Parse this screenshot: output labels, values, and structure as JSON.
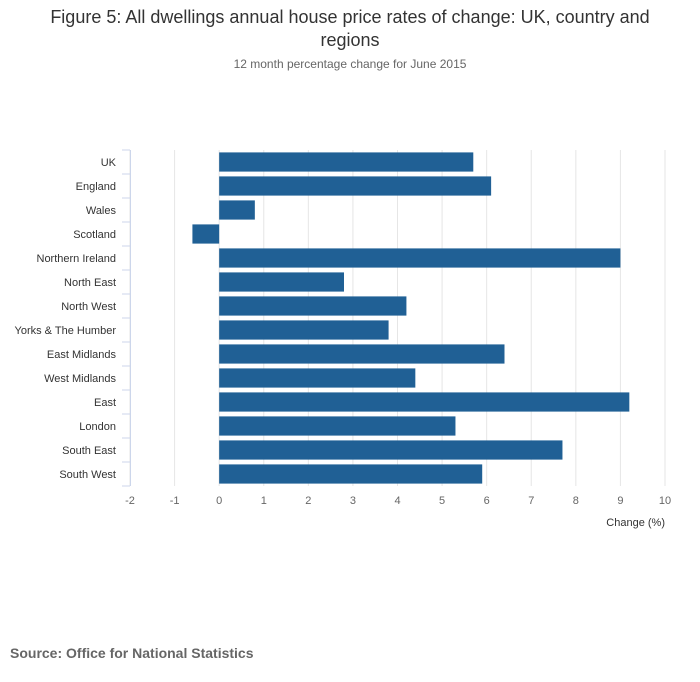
{
  "chart_data": {
    "type": "bar",
    "orientation": "horizontal",
    "title": "Figure 5: All dwellings annual house price rates of change: UK, country and regions",
    "subtitle": "12 month percentage change for June 2015",
    "categories": [
      "UK",
      "England",
      "Wales",
      "Scotland",
      "Northern Ireland",
      "North East",
      "North West",
      "Yorks & The Humber",
      "East Midlands",
      "West Midlands",
      "East",
      "London",
      "South East",
      "South West"
    ],
    "values": [
      5.7,
      6.1,
      0.8,
      -0.6,
      9.0,
      2.8,
      4.2,
      3.8,
      6.4,
      4.4,
      9.2,
      5.3,
      7.7,
      5.9
    ],
    "xlabel": "Change (%)",
    "ylabel": "",
    "xlim": [
      -2,
      10
    ],
    "xticks": [
      -2,
      -1,
      0,
      1,
      2,
      3,
      4,
      5,
      6,
      7,
      8,
      9,
      10
    ],
    "grid": true,
    "bar_color": "#206095",
    "grid_color": "#e6e6e6",
    "axis_color": "#ccd6eb"
  },
  "footer": {
    "source": "Source: Office for National Statistics"
  }
}
